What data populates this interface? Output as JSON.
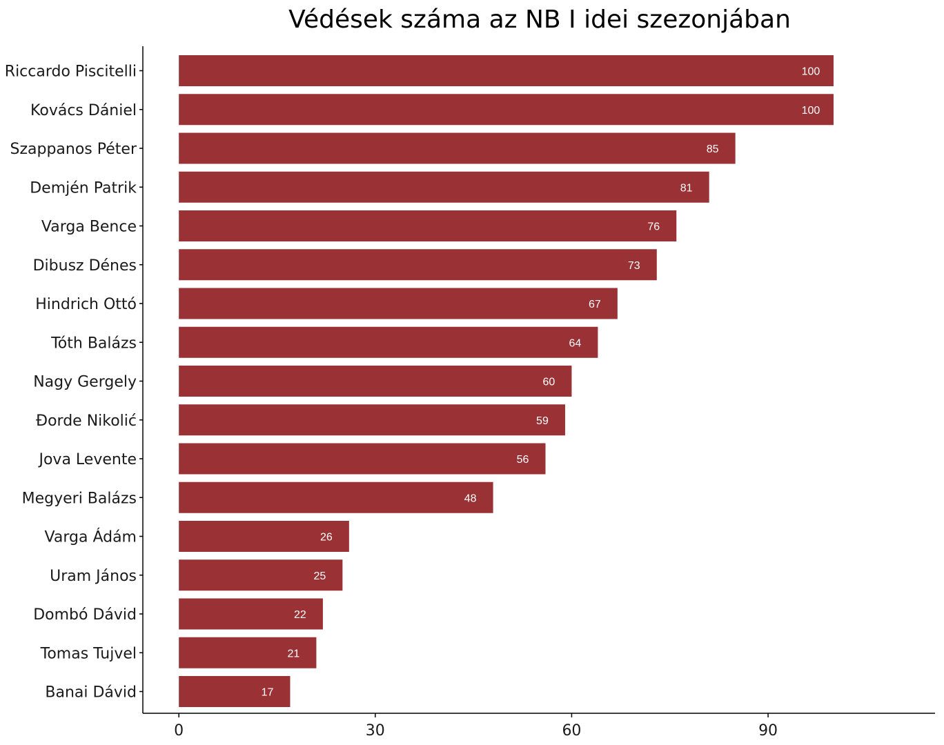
{
  "chart_data": {
    "type": "bar",
    "orientation": "horizontal",
    "title": "Védések száma az NB I idei szezonjában",
    "xlabel": "",
    "ylabel": "",
    "categories": [
      "Riccardo Piscitelli",
      "Kovács Dániel",
      "Szappanos Péter",
      "Demjén Patrik",
      "Varga Bence",
      "Dibusz Dénes",
      "Hindrich Ottó",
      "Tóth Balázs",
      "Nagy Gergely",
      "Đorde Nikolić",
      "Jova Levente",
      "Megyeri Balázs",
      "Varga Ádám",
      "Uram János",
      "Dombó Dávid",
      "Tomas Tujvel",
      "Banai Dávid"
    ],
    "values": [
      100,
      100,
      85,
      81,
      76,
      73,
      67,
      64,
      60,
      59,
      56,
      48,
      26,
      25,
      22,
      21,
      17
    ],
    "xticks": [
      0,
      30,
      60,
      90
    ],
    "xlim": [
      -5.5,
      115.5
    ],
    "grid": false,
    "bar_color": "#9a3134",
    "label_color": "#ffffff"
  }
}
